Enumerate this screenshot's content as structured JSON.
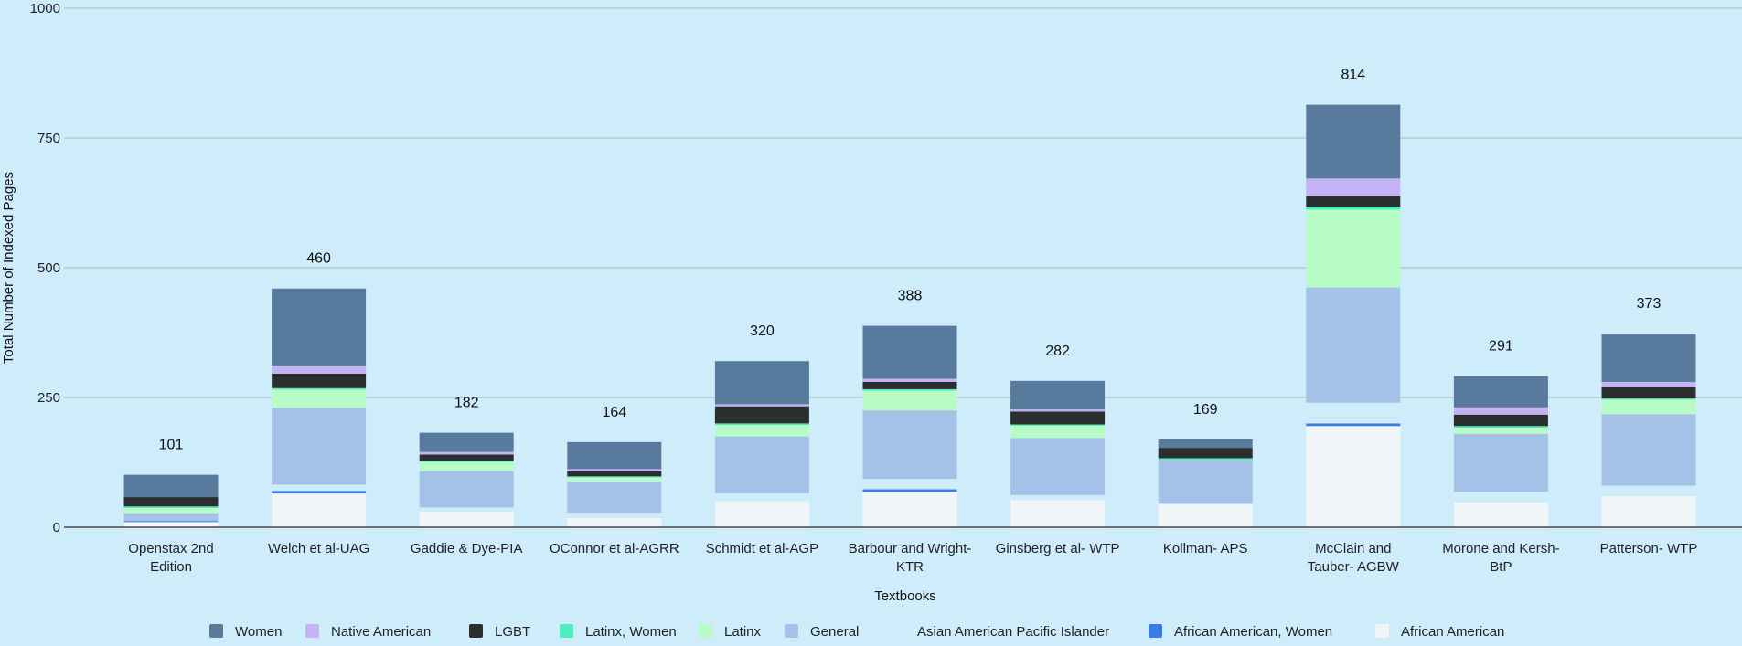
{
  "chart_data": {
    "type": "bar",
    "stacked": true,
    "title": "",
    "xlabel": "Textbooks",
    "ylabel": "Total Number of Indexed Pages",
    "ylim": [
      0,
      1000
    ],
    "yticks": [
      0,
      250,
      500,
      750,
      1000
    ],
    "grid": true,
    "legend_position": "bottom",
    "categories": [
      [
        "Openstax 2nd",
        "Edition"
      ],
      [
        "Welch et al-UAG"
      ],
      [
        "Gaddie & Dye-PIA"
      ],
      [
        "OConnor et al-AGRR"
      ],
      [
        "Schmidt et al-AGP"
      ],
      [
        "Barbour and Wright-",
        "KTR"
      ],
      [
        "Ginsberg et al- WTP"
      ],
      [
        "Kollman- APS"
      ],
      [
        "McClain and",
        "Tauber- AGBW"
      ],
      [
        "Morone and Kersh-",
        "BtP"
      ],
      [
        "Patterson- WTP"
      ]
    ],
    "totals": [
      101,
      460,
      182,
      164,
      320,
      388,
      282,
      169,
      814,
      291,
      373
    ],
    "series": [
      {
        "name": "African American",
        "color": "#f0f6f8",
        "values": [
          10,
          65,
          30,
          18,
          50,
          68,
          52,
          45,
          195,
          48,
          60
        ]
      },
      {
        "name": "African American, Women",
        "color": "#3b7be6",
        "values": [
          2,
          5,
          0,
          0,
          0,
          5,
          0,
          0,
          5,
          0,
          0
        ]
      },
      {
        "name": "Asian American Pacific Islander",
        "color": "#cfecfb",
        "values": [
          0,
          12,
          8,
          10,
          15,
          20,
          10,
          0,
          40,
          20,
          20
        ]
      },
      {
        "name": "General",
        "color": "#a4c2e8",
        "values": [
          15,
          148,
          70,
          60,
          110,
          132,
          110,
          85,
          222,
          112,
          138
        ]
      },
      {
        "name": "Latinx",
        "color": "#b7fbc6",
        "values": [
          10,
          35,
          18,
          8,
          22,
          38,
          24,
          0,
          150,
          12,
          28
        ]
      },
      {
        "name": "Latinx, Women",
        "color": "#4deebb",
        "values": [
          3,
          3,
          2,
          2,
          3,
          3,
          2,
          3,
          6,
          3,
          2
        ]
      },
      {
        "name": "LGBT",
        "color": "#2a2e2f",
        "values": [
          18,
          28,
          12,
          10,
          33,
          14,
          25,
          20,
          20,
          22,
          22
        ]
      },
      {
        "name": "Native American",
        "color": "#c3b2f4",
        "values": [
          0,
          14,
          5,
          4,
          4,
          6,
          4,
          0,
          34,
          14,
          10
        ]
      },
      {
        "name": "Women",
        "color": "#587a9c",
        "values": [
          43,
          150,
          37,
          52,
          83,
          102,
          55,
          16,
          142,
          60,
          93
        ]
      }
    ],
    "legend_order": [
      "Women",
      "Native American",
      "LGBT",
      "Latinx, Women",
      "Latinx",
      "General",
      "Asian American Pacific Islander",
      "African American, Women",
      "African American"
    ]
  }
}
